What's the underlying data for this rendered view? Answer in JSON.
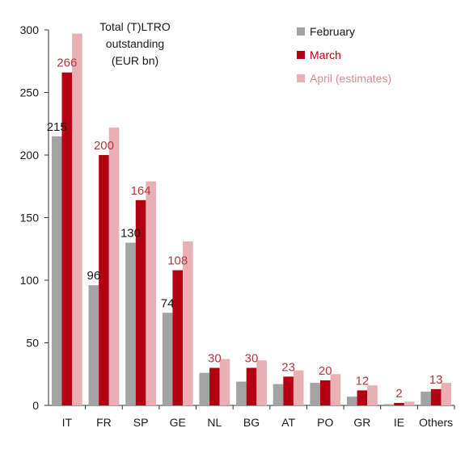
{
  "chart_data": {
    "type": "bar",
    "title_lines": [
      "Total (T)LTRO",
      "outstanding",
      "(EUR bn)"
    ],
    "categories": [
      "IT",
      "FR",
      "SP",
      "GE",
      "NL",
      "BG",
      "AT",
      "PO",
      "GR",
      "IE",
      "Others"
    ],
    "series": [
      {
        "name": "February",
        "color": "#a3a3a3",
        "label_color": "#1a1a1a",
        "values": [
          215,
          96,
          130,
          74,
          26,
          19,
          17,
          18,
          7,
          1,
          11
        ],
        "labels": [
          "215",
          "96",
          "130",
          "74",
          "",
          "",
          "",
          "",
          "",
          "",
          ""
        ]
      },
      {
        "name": "March",
        "color": "#b40013",
        "label_color": "#b5373d",
        "values": [
          266,
          200,
          164,
          108,
          30,
          30,
          23,
          20,
          12,
          2,
          13
        ],
        "labels": [
          "266",
          "200",
          "164",
          "108",
          "30",
          "30",
          "23",
          "20",
          "12",
          "2",
          "13"
        ]
      },
      {
        "name": "April (estimates)",
        "color": "#e8b0b5",
        "label_color": "#1a1a1a",
        "values": [
          297,
          222,
          179,
          131,
          37,
          36,
          28,
          25,
          16,
          3,
          18
        ],
        "labels": [
          "",
          "",
          "",
          "",
          "",
          "",
          "",
          "",
          "",
          "",
          ""
        ]
      }
    ],
    "ylim": [
      0,
      300
    ],
    "yticks": [
      0,
      50,
      100,
      150,
      200,
      250,
      300
    ],
    "grid": false,
    "legend_position": "top-right"
  }
}
